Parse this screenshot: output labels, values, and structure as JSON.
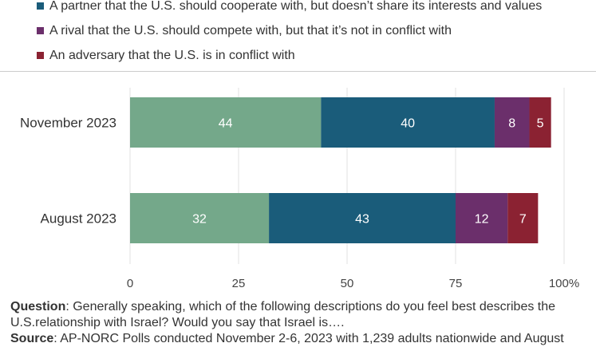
{
  "legend": [
    {
      "label": "A partner that the U.S. should cooperate with, but doesn’t share its interests and values",
      "color": "#1a5c7a"
    },
    {
      "label": "A rival that the U.S. should compete with, but that it’s not in conflict with",
      "color": "#6b2f6b"
    },
    {
      "label": "An adversary that the U.S. is in conflict with",
      "color": "#8b2232"
    }
  ],
  "chart_data": {
    "type": "bar",
    "orientation": "horizontal",
    "stacked": true,
    "categories": [
      "November 2023",
      "August 2023"
    ],
    "series": [
      {
        "values": [
          44,
          32
        ],
        "color": "#74a88a"
      },
      {
        "name": "A partner that the U.S. should cooperate with, but doesn’t share its interests and values",
        "values": [
          40,
          43
        ],
        "color": "#1a5c7a"
      },
      {
        "name": "A rival that the U.S. should compete with, but that it’s not in conflict with",
        "values": [
          8,
          12
        ],
        "color": "#6b2f6b"
      },
      {
        "name": "An adversary that the U.S. is in conflict with",
        "values": [
          5,
          7
        ],
        "color": "#8b2232"
      }
    ],
    "xlim": [
      0,
      100
    ],
    "xticks": [
      "0",
      "25",
      "50",
      "75",
      "100%"
    ],
    "grid": true,
    "legend_position": "top"
  },
  "footer": {
    "question_label": "Question",
    "question_text": ": Generally speaking, which of the following descriptions do you feel best describes the U.S.relationship with Israel? Would you say that Israel is….",
    "source_label": "Source",
    "source_text": ": AP-NORC Polls conducted November 2-6, 2023 with 1,239 adults nationwide and August"
  }
}
